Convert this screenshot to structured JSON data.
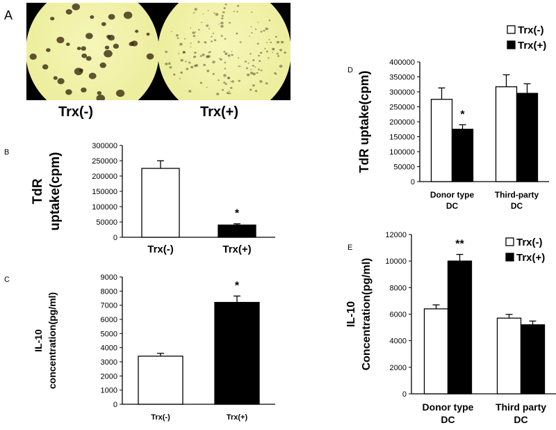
{
  "panel_a": {
    "letter": "A",
    "left_label": "Trx(-)",
    "right_label": "Trx(+)"
  },
  "colors": {
    "bar_control": "#ffffff",
    "bar_treated": "#000000",
    "micro_bg": "#ecec9a",
    "micro_spot": "#3a2a12"
  },
  "chart_data": [
    {
      "id": "B",
      "letter": "B",
      "type": "bar",
      "categories": [
        "Trx(-)",
        "Trx(+)"
      ],
      "series": [
        {
          "values": [
            225000,
            40000
          ],
          "errors": [
            25000,
            4000
          ]
        }
      ],
      "ylabel": "TdR uptake(cpm)",
      "ylim": [
        0,
        300000
      ],
      "yticks": [
        0,
        50000,
        100000,
        150000,
        200000,
        250000,
        300000
      ],
      "annotations": [
        {
          "category": 1,
          "series": 0,
          "text": "*"
        }
      ],
      "grid": false
    },
    {
      "id": "C",
      "letter": "C",
      "type": "bar",
      "categories": [
        "Trx(-)",
        "Trx(+)"
      ],
      "series": [
        {
          "values": [
            3400,
            7200
          ],
          "errors": [
            200,
            450
          ]
        }
      ],
      "ylabel": "IL-10 concentration(pg/ml)",
      "ylim": [
        0,
        9000
      ],
      "yticks": [
        0,
        1000,
        2000,
        3000,
        4000,
        5000,
        6000,
        7000,
        8000,
        9000
      ],
      "annotations": [
        {
          "category": 1,
          "series": 0,
          "text": "*"
        }
      ],
      "grid": false
    },
    {
      "id": "D",
      "letter": "D",
      "type": "bar",
      "categories": [
        "Donor type DC",
        "Third-party DC"
      ],
      "series": [
        {
          "name": "Trx(-)",
          "values": [
            275000,
            317000
          ],
          "errors": [
            38000,
            40000
          ]
        },
        {
          "name": "Trx(+)",
          "values": [
            175000,
            295000
          ],
          "errors": [
            15000,
            32000
          ]
        }
      ],
      "ylabel": "TdR uptake(cpm)",
      "ylim": [
        0,
        400000
      ],
      "yticks": [
        0,
        50000,
        100000,
        150000,
        200000,
        250000,
        300000,
        350000,
        400000
      ],
      "annotations": [
        {
          "category": 0,
          "series": 1,
          "text": "*"
        }
      ],
      "legend": "top-right",
      "grid": false
    },
    {
      "id": "E",
      "letter": "E",
      "type": "bar",
      "categories": [
        "Donor type DC",
        "Third party DC"
      ],
      "series": [
        {
          "name": "Trx(-)",
          "values": [
            6400,
            5700
          ],
          "errors": [
            300,
            280
          ]
        },
        {
          "name": "Trx(+)",
          "values": [
            10000,
            5200
          ],
          "errors": [
            500,
            280
          ]
        }
      ],
      "ylabel": "IL-10 Concentration(pg/ml)",
      "ylim": [
        0,
        12000
      ],
      "yticks": [
        0,
        2000,
        4000,
        6000,
        8000,
        10000,
        12000
      ],
      "annotations": [
        {
          "category": 0,
          "series": 1,
          "text": "**"
        }
      ],
      "legend": "top-right",
      "grid": false
    }
  ]
}
